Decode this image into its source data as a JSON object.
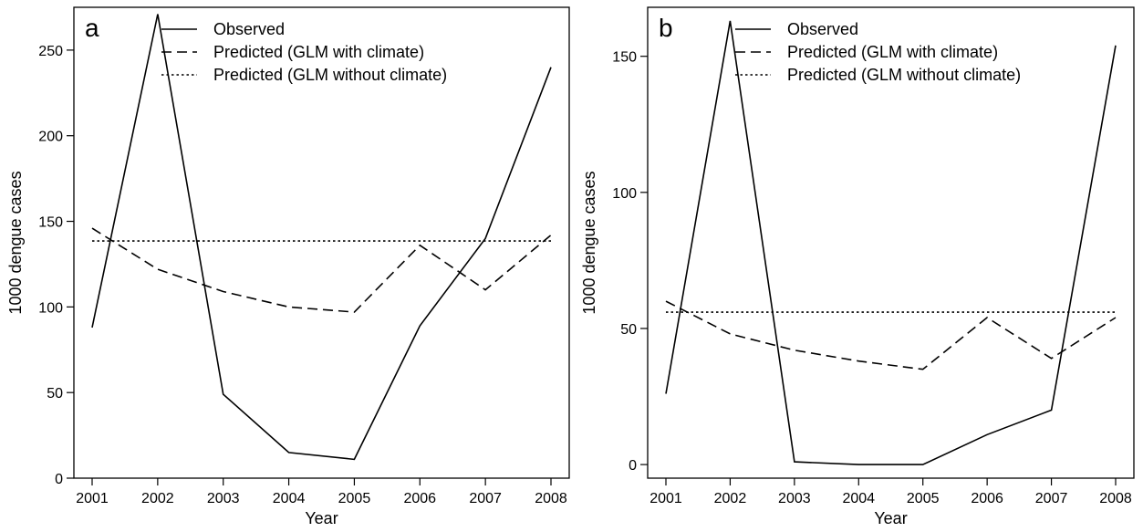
{
  "chart_data": [
    {
      "panel_label": "a",
      "type": "line",
      "xlabel": "Year",
      "ylabel": "1000 dengue cases",
      "x": [
        2001,
        2002,
        2003,
        2004,
        2005,
        2006,
        2007,
        2008
      ],
      "xticks": [
        "2001",
        "2002",
        "2003",
        "2004",
        "2005",
        "2006",
        "2007",
        "2008"
      ],
      "yticks": [
        0,
        50,
        100,
        150,
        200,
        250
      ],
      "ylim": [
        0,
        275
      ],
      "legend_position": "top",
      "series": [
        {
          "name": "Observed",
          "style": "solid",
          "values": [
            88,
            271,
            49,
            15,
            11,
            89,
            140,
            240
          ]
        },
        {
          "name": "Predicted (GLM with climate)",
          "style": "dashed",
          "values": [
            146,
            122,
            109,
            100,
            97,
            136,
            110,
            142
          ]
        },
        {
          "name": "Predicted (GLM without climate)",
          "style": "dotted",
          "values": [
            138.5,
            138.5,
            138.5,
            138.5,
            138.5,
            138.5,
            138.5,
            138.5
          ]
        }
      ]
    },
    {
      "panel_label": "b",
      "type": "line",
      "xlabel": "Year",
      "ylabel": "1000 dengue cases",
      "x": [
        2001,
        2002,
        2003,
        2004,
        2005,
        2006,
        2007,
        2008
      ],
      "xticks": [
        "2001",
        "2002",
        "2003",
        "2004",
        "2005",
        "2006",
        "2007",
        "2008"
      ],
      "yticks": [
        0,
        50,
        100,
        150
      ],
      "ylim": [
        -5,
        168
      ],
      "legend_position": "top",
      "series": [
        {
          "name": "Observed",
          "style": "solid",
          "values": [
            26,
            163,
            1,
            0,
            0,
            11,
            20,
            154
          ]
        },
        {
          "name": "Predicted (GLM with climate)",
          "style": "dashed",
          "values": [
            60,
            48,
            42,
            38,
            35,
            54,
            39,
            54
          ]
        },
        {
          "name": "Predicted (GLM without climate)",
          "style": "dotted",
          "values": [
            56,
            56,
            56,
            56,
            56,
            56,
            56,
            56
          ]
        }
      ]
    }
  ]
}
